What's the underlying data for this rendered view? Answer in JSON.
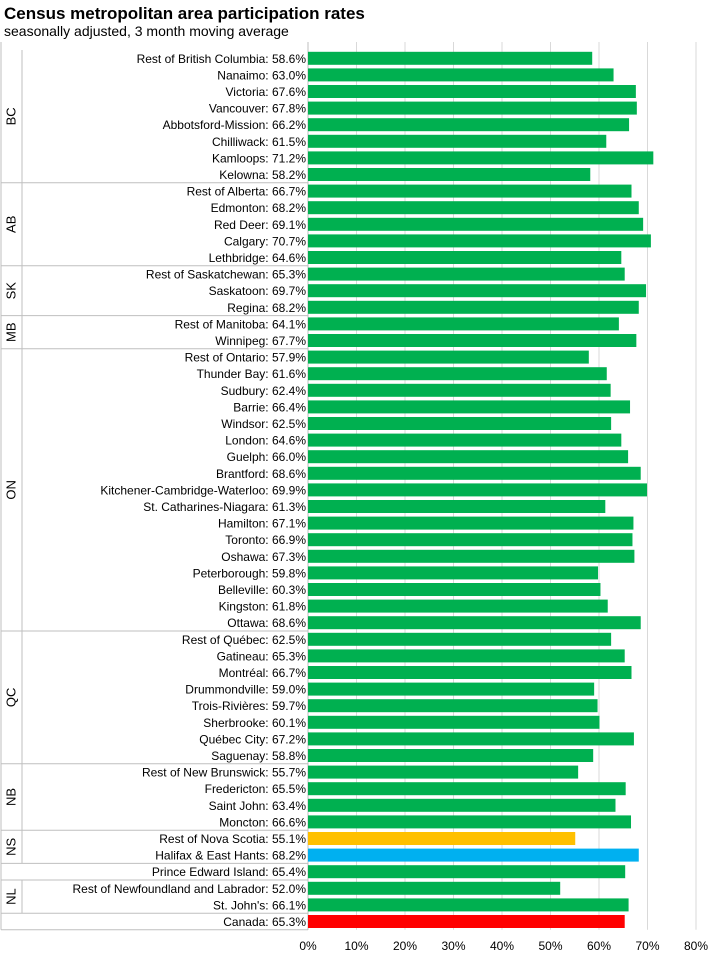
{
  "chart_data": {
    "type": "bar",
    "orientation": "horizontal",
    "title": "Census metropolitan area participation rates",
    "subtitle": "seasonally adjusted, 3 month moving average",
    "xlim": [
      0,
      80
    ],
    "xticks": [
      "0%",
      "10%",
      "20%",
      "30%",
      "40%",
      "50%",
      "60%",
      "70%",
      "80%"
    ],
    "grid": true,
    "colors": {
      "default": "#00b050",
      "highlight_yellow": "#ffc000",
      "highlight_blue": "#00b0f0",
      "canada": "#ff0000"
    },
    "groups": [
      {
        "label": "BC",
        "items": [
          {
            "label": "Rest of British Columbia: 58.6%",
            "value": 58.6,
            "color": "#00b050"
          },
          {
            "label": "Nanaimo: 63.0%",
            "value": 63.0,
            "color": "#00b050"
          },
          {
            "label": "Victoria: 67.6%",
            "value": 67.6,
            "color": "#00b050"
          },
          {
            "label": "Vancouver: 67.8%",
            "value": 67.8,
            "color": "#00b050"
          },
          {
            "label": "Abbotsford-Mission: 66.2%",
            "value": 66.2,
            "color": "#00b050"
          },
          {
            "label": "Chilliwack: 61.5%",
            "value": 61.5,
            "color": "#00b050"
          },
          {
            "label": "Kamloops: 71.2%",
            "value": 71.2,
            "color": "#00b050"
          },
          {
            "label": "Kelowna: 58.2%",
            "value": 58.2,
            "color": "#00b050"
          }
        ]
      },
      {
        "label": "AB",
        "items": [
          {
            "label": "Rest of Alberta: 66.7%",
            "value": 66.7,
            "color": "#00b050"
          },
          {
            "label": "Edmonton: 68.2%",
            "value": 68.2,
            "color": "#00b050"
          },
          {
            "label": "Red Deer: 69.1%",
            "value": 69.1,
            "color": "#00b050"
          },
          {
            "label": "Calgary: 70.7%",
            "value": 70.7,
            "color": "#00b050"
          },
          {
            "label": "Lethbridge: 64.6%",
            "value": 64.6,
            "color": "#00b050"
          }
        ]
      },
      {
        "label": "SK",
        "items": [
          {
            "label": "Rest of Saskatchewan: 65.3%",
            "value": 65.3,
            "color": "#00b050"
          },
          {
            "label": "Saskatoon: 69.7%",
            "value": 69.7,
            "color": "#00b050"
          },
          {
            "label": "Regina: 68.2%",
            "value": 68.2,
            "color": "#00b050"
          }
        ]
      },
      {
        "label": "MB",
        "items": [
          {
            "label": "Rest of Manitoba: 64.1%",
            "value": 64.1,
            "color": "#00b050"
          },
          {
            "label": "Winnipeg: 67.7%",
            "value": 67.7,
            "color": "#00b050"
          }
        ]
      },
      {
        "label": "ON",
        "items": [
          {
            "label": "Rest of Ontario: 57.9%",
            "value": 57.9,
            "color": "#00b050"
          },
          {
            "label": "Thunder Bay: 61.6%",
            "value": 61.6,
            "color": "#00b050"
          },
          {
            "label": "Sudbury: 62.4%",
            "value": 62.4,
            "color": "#00b050"
          },
          {
            "label": "Barrie: 66.4%",
            "value": 66.4,
            "color": "#00b050"
          },
          {
            "label": "Windsor: 62.5%",
            "value": 62.5,
            "color": "#00b050"
          },
          {
            "label": "London: 64.6%",
            "value": 64.6,
            "color": "#00b050"
          },
          {
            "label": "Guelph: 66.0%",
            "value": 66.0,
            "color": "#00b050"
          },
          {
            "label": "Brantford: 68.6%",
            "value": 68.6,
            "color": "#00b050"
          },
          {
            "label": "Kitchener-Cambridge-Waterloo: 69.9%",
            "value": 69.9,
            "color": "#00b050"
          },
          {
            "label": "St. Catharines-Niagara: 61.3%",
            "value": 61.3,
            "color": "#00b050"
          },
          {
            "label": "Hamilton: 67.1%",
            "value": 67.1,
            "color": "#00b050"
          },
          {
            "label": "Toronto: 66.9%",
            "value": 66.9,
            "color": "#00b050"
          },
          {
            "label": "Oshawa: 67.3%",
            "value": 67.3,
            "color": "#00b050"
          },
          {
            "label": "Peterborough: 59.8%",
            "value": 59.8,
            "color": "#00b050"
          },
          {
            "label": "Belleville: 60.3%",
            "value": 60.3,
            "color": "#00b050"
          },
          {
            "label": "Kingston: 61.8%",
            "value": 61.8,
            "color": "#00b050"
          },
          {
            "label": "Ottawa: 68.6%",
            "value": 68.6,
            "color": "#00b050"
          }
        ]
      },
      {
        "label": "QC",
        "items": [
          {
            "label": "Rest of Québec: 62.5%",
            "value": 62.5,
            "color": "#00b050"
          },
          {
            "label": "Gatineau: 65.3%",
            "value": 65.3,
            "color": "#00b050"
          },
          {
            "label": "Montréal: 66.7%",
            "value": 66.7,
            "color": "#00b050"
          },
          {
            "label": "Drummondville: 59.0%",
            "value": 59.0,
            "color": "#00b050"
          },
          {
            "label": "Trois-Rivières: 59.7%",
            "value": 59.7,
            "color": "#00b050"
          },
          {
            "label": "Sherbrooke: 60.1%",
            "value": 60.1,
            "color": "#00b050"
          },
          {
            "label": "Québec City: 67.2%",
            "value": 67.2,
            "color": "#00b050"
          },
          {
            "label": "Saguenay: 58.8%",
            "value": 58.8,
            "color": "#00b050"
          }
        ]
      },
      {
        "label": "NB",
        "items": [
          {
            "label": "Rest of New Brunswick: 55.7%",
            "value": 55.7,
            "color": "#00b050"
          },
          {
            "label": "Fredericton: 65.5%",
            "value": 65.5,
            "color": "#00b050"
          },
          {
            "label": "Saint John: 63.4%",
            "value": 63.4,
            "color": "#00b050"
          },
          {
            "label": "Moncton: 66.6%",
            "value": 66.6,
            "color": "#00b050"
          }
        ]
      },
      {
        "label": "NS",
        "items": [
          {
            "label": "Rest of Nova Scotia: 55.1%",
            "value": 55.1,
            "color": "#ffc000"
          },
          {
            "label": "Halifax & East Hants: 68.2%",
            "value": 68.2,
            "color": "#00b0f0"
          }
        ]
      },
      {
        "label": "",
        "items": [
          {
            "label": "Prince Edward Island: 65.4%",
            "value": 65.4,
            "color": "#00b050"
          }
        ]
      },
      {
        "label": "NL",
        "items": [
          {
            "label": "Rest of Newfoundland and Labrador: 52.0%",
            "value": 52.0,
            "color": "#00b050"
          },
          {
            "label": "St. John's: 66.1%",
            "value": 66.1,
            "color": "#00b050"
          }
        ]
      },
      {
        "label": "",
        "items": [
          {
            "label": "Canada: 65.3%",
            "value": 65.3,
            "color": "#ff0000"
          }
        ]
      }
    ]
  }
}
